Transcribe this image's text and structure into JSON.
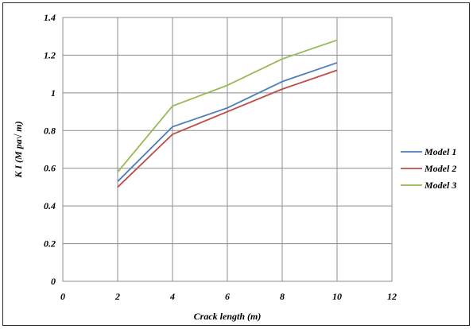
{
  "chart_data": {
    "type": "line",
    "xlabel": "Crack length (m)",
    "ylabel": "K I (M pa√ m)",
    "xlim": [
      0,
      12
    ],
    "ylim": [
      0,
      1.4
    ],
    "x_ticks": [
      "0",
      "2",
      "4",
      "6",
      "8",
      "10",
      "12"
    ],
    "y_ticks": [
      "0",
      "0.2",
      "0.4",
      "0.6",
      "0.8",
      "1",
      "1.2",
      "1.4"
    ],
    "grid": true,
    "legend_position": "right",
    "series": [
      {
        "name": "Model 1",
        "color": "#4a7ebb",
        "x": [
          2,
          4,
          6,
          8,
          10
        ],
        "y": [
          0.53,
          0.82,
          0.92,
          1.06,
          1.16
        ]
      },
      {
        "name": "Model 2",
        "color": "#be4b48",
        "x": [
          2,
          4,
          6,
          8,
          10
        ],
        "y": [
          0.5,
          0.78,
          0.9,
          1.02,
          1.12
        ]
      },
      {
        "name": "Model 3",
        "color": "#98b954",
        "x": [
          2,
          4,
          6,
          8,
          10
        ],
        "y": [
          0.58,
          0.93,
          1.04,
          1.18,
          1.28
        ]
      }
    ]
  }
}
